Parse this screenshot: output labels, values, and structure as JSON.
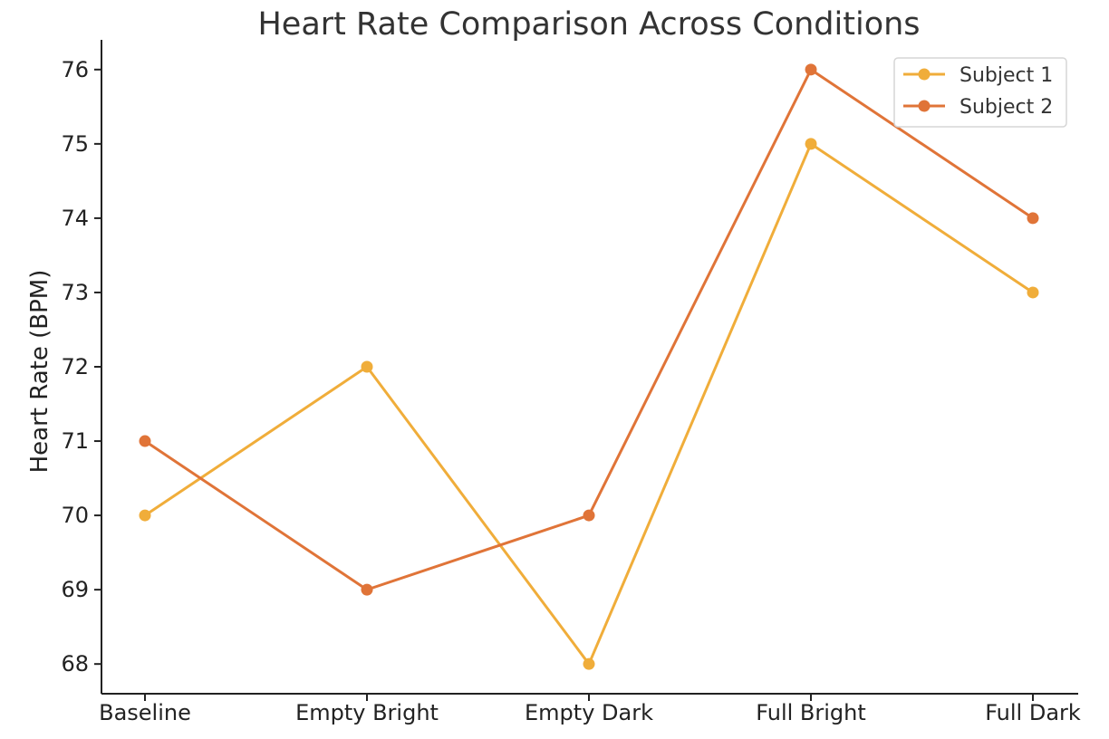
{
  "chart_data": {
    "type": "line",
    "title": "Heart Rate Comparison Across Conditions",
    "xlabel": "",
    "ylabel": "Heart Rate (BPM)",
    "categories": [
      "Baseline",
      "Empty Bright",
      "Empty Dark",
      "Full Bright",
      "Full Dark"
    ],
    "ylim": [
      67.6,
      76.4
    ],
    "yticks": [
      68,
      69,
      70,
      71,
      72,
      73,
      74,
      75,
      76
    ],
    "grid": false,
    "legend": "top-right",
    "series": [
      {
        "name": "Subject 1",
        "color": "#f0ad3a",
        "values": [
          70,
          72,
          68,
          75,
          73
        ]
      },
      {
        "name": "Subject 2",
        "color": "#e07438",
        "values": [
          71,
          69,
          70,
          76,
          74
        ]
      }
    ]
  }
}
